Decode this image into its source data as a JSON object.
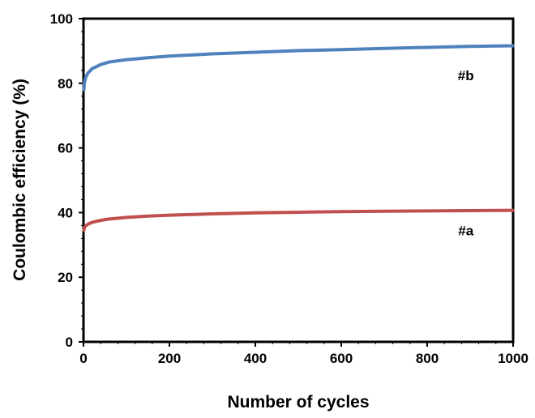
{
  "chart_data": {
    "type": "line",
    "title": "",
    "xlabel": "Number of cycles",
    "ylabel": "Coulombic efficiency (%)",
    "xlim": [
      0,
      1000
    ],
    "ylim": [
      0,
      100
    ],
    "xticks": [
      0,
      200,
      400,
      600,
      800,
      1000
    ],
    "yticks": [
      0,
      20,
      40,
      60,
      80,
      100
    ],
    "xtick_labels": [
      "0",
      "200",
      "400",
      "600",
      "800",
      "1000"
    ],
    "ytick_labels": [
      "0",
      "20",
      "40",
      "60",
      "80",
      "100"
    ],
    "grid": false,
    "legend": "none",
    "series": [
      {
        "name": "#a",
        "color": "#c0504d",
        "label_at": {
          "x": 890,
          "y": 33
        },
        "x": [
          1,
          2,
          5,
          10,
          20,
          40,
          60,
          100,
          150,
          200,
          300,
          400,
          500,
          600,
          700,
          800,
          900,
          1000
        ],
        "y": [
          34.5,
          35.3,
          35.9,
          36.4,
          37.0,
          37.6,
          38.0,
          38.5,
          38.9,
          39.2,
          39.6,
          39.9,
          40.1,
          40.3,
          40.4,
          40.5,
          40.6,
          40.7
        ]
      },
      {
        "name": "#b",
        "color": "#4f81bd",
        "label_at": {
          "x": 890,
          "y": 81
        },
        "x": [
          1,
          2,
          5,
          10,
          20,
          40,
          60,
          100,
          150,
          200,
          300,
          400,
          500,
          600,
          700,
          800,
          900,
          1000
        ],
        "y": [
          78.0,
          80.2,
          81.8,
          83.1,
          84.5,
          85.8,
          86.6,
          87.3,
          87.9,
          88.4,
          89.1,
          89.6,
          90.1,
          90.4,
          90.8,
          91.1,
          91.4,
          91.6
        ]
      }
    ]
  }
}
